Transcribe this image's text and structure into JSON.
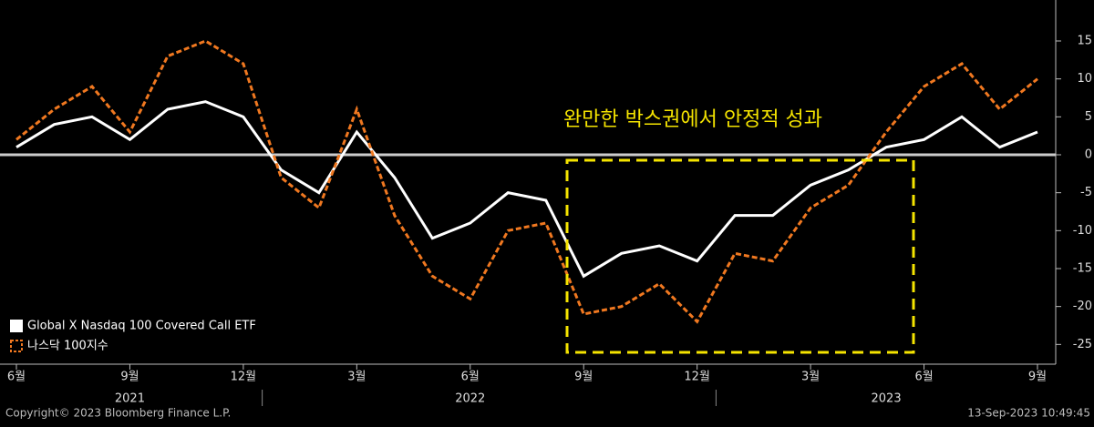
{
  "chart_data": {
    "type": "line",
    "annotation": "완만한 박스권에서 안정적 성과",
    "x": [
      "2021-06",
      "2021-07",
      "2021-08",
      "2021-09",
      "2021-10",
      "2021-11",
      "2021-12",
      "2022-01",
      "2022-02",
      "2022-03",
      "2022-04",
      "2022-05",
      "2022-06",
      "2022-07",
      "2022-08",
      "2022-09",
      "2022-10",
      "2022-11",
      "2022-12",
      "2023-01",
      "2023-02",
      "2023-03",
      "2023-04",
      "2023-05",
      "2023-06",
      "2023-07",
      "2023-08",
      "2023-09"
    ],
    "xlim": [
      "2021-06",
      "2023-09"
    ],
    "xticks": [
      {
        "value": "2021-06",
        "label": "6월"
      },
      {
        "value": "2021-09",
        "label": "9월"
      },
      {
        "value": "2021-12",
        "label": "12월"
      },
      {
        "value": "2022-03",
        "label": "3월"
      },
      {
        "value": "2022-06",
        "label": "6월"
      },
      {
        "value": "2022-09",
        "label": "9월"
      },
      {
        "value": "2022-12",
        "label": "12월"
      },
      {
        "value": "2023-03",
        "label": "3월"
      },
      {
        "value": "2023-06",
        "label": "6월"
      },
      {
        "value": "2023-09",
        "label": "9월"
      }
    ],
    "year_labels": [
      {
        "value": "2021-09",
        "label": "2021"
      },
      {
        "value": "2022-06",
        "label": "2022"
      },
      {
        "value": "2023-05",
        "label": "2023"
      }
    ],
    "series": [
      {
        "name": "Global X Nasdaq 100 Covered Call ETF",
        "color": "#ffffff",
        "dashed": false,
        "values": [
          1,
          4,
          5,
          2,
          6,
          7,
          5,
          -2,
          -5,
          3,
          -3,
          -11,
          -9,
          -5,
          -6,
          -16,
          -13,
          -12,
          -14,
          -8,
          -8,
          -4,
          -2,
          1,
          2,
          5,
          1,
          3
        ]
      },
      {
        "name": "나스닥 100지수",
        "color": "#f07820",
        "dashed": true,
        "values": [
          2,
          6,
          9,
          3,
          13,
          15,
          12,
          -3,
          -7,
          6,
          -8,
          -16,
          -19,
          -10,
          -9,
          -21,
          -20,
          -17,
          -22,
          -13,
          -14,
          -7,
          -4,
          3,
          9,
          12,
          6,
          10
        ]
      }
    ],
    "ylim": [
      -27.6,
      20.4
    ],
    "yticks": [
      -25,
      -20,
      -15,
      -10,
      -5,
      0,
      5,
      10,
      15
    ],
    "footer_left": "Copyright© 2023 Bloomberg Finance L.P.",
    "footer_right": "13-Sep-2023 10:49:45"
  }
}
